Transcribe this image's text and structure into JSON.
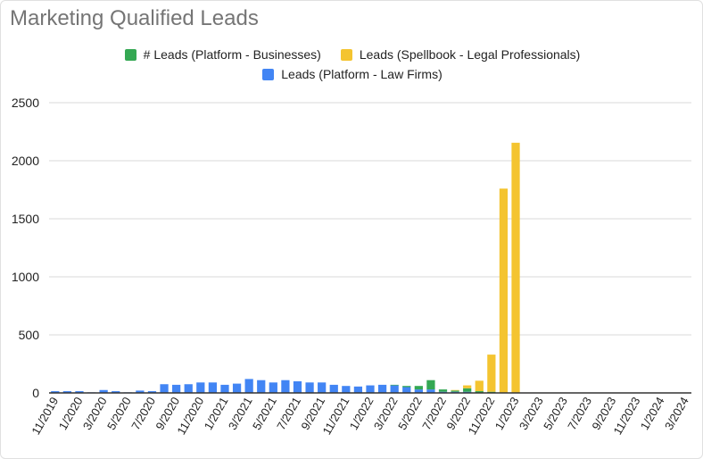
{
  "chart_data": {
    "type": "bar",
    "stacked": true,
    "title": "Marketing Qualified Leads",
    "xlabel": "",
    "ylabel": "",
    "ylim": [
      0,
      2500
    ],
    "yticks": [
      0,
      500,
      1000,
      1500,
      2000,
      2500
    ],
    "grid": true,
    "legend_position": "top",
    "categories": [
      "11/2019",
      "12/2019",
      "1/2020",
      "2/2020",
      "3/2020",
      "4/2020",
      "5/2020",
      "6/2020",
      "7/2020",
      "8/2020",
      "9/2020",
      "10/2020",
      "11/2020",
      "12/2020",
      "1/2021",
      "2/2021",
      "3/2021",
      "4/2021",
      "5/2021",
      "6/2021",
      "7/2021",
      "8/2021",
      "9/2021",
      "10/2021",
      "11/2021",
      "12/2021",
      "1/2022",
      "2/2022",
      "3/2022",
      "4/2022",
      "5/2022",
      "6/2022",
      "7/2022",
      "8/2022",
      "9/2022",
      "10/2022",
      "11/2022",
      "12/2022",
      "1/2023",
      "2/2023",
      "3/2023",
      "4/2023",
      "5/2023",
      "6/2023",
      "7/2023",
      "8/2023",
      "9/2023",
      "10/2023",
      "11/2023",
      "12/2023",
      "1/2024",
      "2/2024",
      "3/2024"
    ],
    "xtick_labels": [
      "11/2019",
      "1/2020",
      "3/2020",
      "5/2020",
      "7/2020",
      "9/2020",
      "11/2020",
      "1/2021",
      "3/2021",
      "5/2021",
      "7/2021",
      "9/2021",
      "11/2021",
      "1/2022",
      "3/2022",
      "5/2022",
      "7/2022",
      "9/2022",
      "11/2022",
      "1/2023",
      "3/2023",
      "5/2023",
      "7/2023",
      "9/2023",
      "11/2023",
      "1/2024",
      "3/2024"
    ],
    "series": [
      {
        "name": "Leads (Platform - Law Firms)",
        "color": "#4285f4",
        "values": [
          15,
          15,
          15,
          5,
          25,
          15,
          5,
          20,
          15,
          75,
          70,
          75,
          90,
          90,
          70,
          80,
          120,
          110,
          90,
          110,
          100,
          90,
          90,
          70,
          60,
          55,
          65,
          70,
          65,
          50,
          30,
          30,
          10,
          10,
          10,
          0,
          0,
          0,
          0,
          0,
          0,
          0,
          0,
          0,
          0,
          0,
          0,
          0,
          0,
          0,
          0,
          0,
          0
        ]
      },
      {
        "name": "# Leads (Platform - Businesses)",
        "color": "#34a853",
        "values": [
          0,
          0,
          0,
          0,
          0,
          0,
          0,
          0,
          0,
          0,
          0,
          0,
          0,
          0,
          0,
          0,
          0,
          0,
          0,
          0,
          0,
          0,
          0,
          0,
          0,
          0,
          0,
          0,
          5,
          10,
          30,
          80,
          20,
          10,
          30,
          15,
          10,
          0,
          0,
          0,
          0,
          0,
          0,
          0,
          0,
          0,
          0,
          0,
          0,
          0,
          0,
          0,
          0
        ]
      },
      {
        "name": "Leads (Spellbook - Legal Professionals)",
        "color": "#f4c430",
        "values": [
          0,
          0,
          0,
          0,
          0,
          0,
          0,
          0,
          0,
          0,
          0,
          0,
          0,
          0,
          0,
          0,
          0,
          0,
          0,
          0,
          0,
          0,
          0,
          0,
          0,
          0,
          0,
          0,
          0,
          0,
          0,
          0,
          0,
          5,
          25,
          90,
          320,
          1760,
          2155,
          0,
          0,
          0,
          0,
          0,
          0,
          0,
          0,
          0,
          0,
          0,
          0,
          0,
          0
        ]
      }
    ],
    "legend": [
      [
        "# Leads (Platform - Businesses)",
        "Leads (Spellbook - Legal Professionals)"
      ],
      [
        "Leads (Platform - Law Firms)"
      ]
    ]
  },
  "colors": {
    "title": "#757575",
    "grid": "#d9d9d9",
    "axis": "#333333",
    "text": "#222222"
  }
}
